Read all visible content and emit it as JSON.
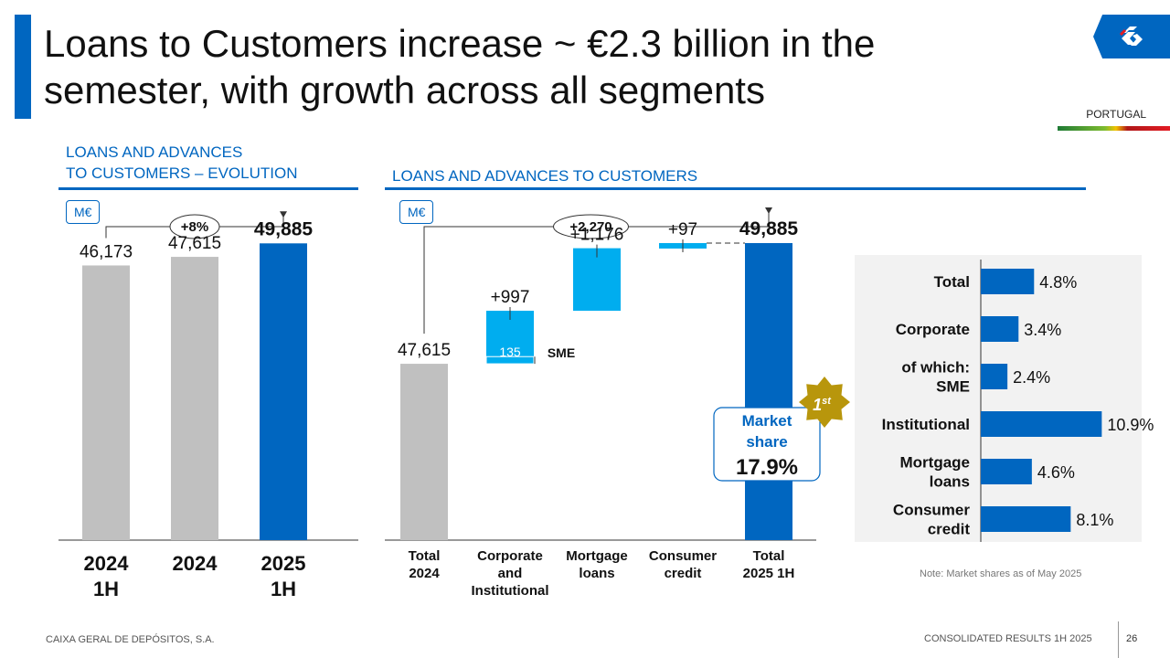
{
  "page": {
    "title": "Loans to Customers increase ~ €2.3 billion in the semester, with growth across all segments",
    "country": "PORTUGAL",
    "footer_left": "CAIXA GERAL DE DEPÓSITOS, S.A.",
    "footer_right": "CONSOLIDATED RESULTS 1H 2025",
    "page_number": "26",
    "note": "Note: Market shares as of May 2025"
  },
  "colors": {
    "brand_blue": "#0066c0",
    "light_blue": "#00adef",
    "grey_bar": "#c0c0c0",
    "gold": "#b8960c",
    "panel_bg": "#f2f2f2"
  },
  "chart_data": [
    {
      "type": "bar",
      "title": "LOANS AND ADVANCES\nTO CUSTOMERS – EVOLUTION",
      "title_lines": [
        "LOANS AND ADVANCES",
        "TO CUSTOMERS – EVOLUTION"
      ],
      "unit": "M€",
      "categories": [
        [
          "2024",
          "1H"
        ],
        [
          "2024"
        ],
        [
          "2025",
          "1H"
        ]
      ],
      "values": [
        46173,
        47615,
        49885
      ],
      "value_labels": [
        "46,173",
        "47,615",
        "49,885"
      ],
      "highlight_index": 2,
      "growth_label": "+8%",
      "ylim": [
        0,
        55000
      ]
    },
    {
      "type": "waterfall",
      "title": "LOANS AND ADVANCES TO CUSTOMERS",
      "unit": "M€",
      "categories": [
        [
          "Total",
          "2024"
        ],
        [
          "Corporate",
          "and",
          "Institutional"
        ],
        [
          "Mortgage",
          "loans"
        ],
        [
          "Consumer",
          "credit"
        ],
        [
          "Total",
          "2025 1H"
        ]
      ],
      "start": 47615,
      "deltas": [
        997,
        1176,
        97
      ],
      "end": 49885,
      "value_labels": [
        "47,615",
        "+997",
        "+1,176",
        "+97",
        "49,885"
      ],
      "sme_value": 135,
      "sme_value_label": "135",
      "sme_label": "SME",
      "growth_label": "+2,270",
      "market_share": {
        "label_lines": [
          "Market",
          "share"
        ],
        "value": "17.9%",
        "rank": "1",
        "rank_suffix": "st"
      },
      "ylim": [
        44300,
        50400
      ]
    },
    {
      "type": "bar",
      "orientation": "horizontal",
      "categories": [
        [
          "Total"
        ],
        [
          "Corporate"
        ],
        [
          "of which:",
          "SME"
        ],
        [
          "Institutional"
        ],
        [
          "Mortgage",
          "loans"
        ],
        [
          "Consumer",
          "credit"
        ]
      ],
      "values": [
        4.8,
        3.4,
        2.4,
        10.9,
        4.6,
        8.1
      ],
      "value_labels": [
        "4.8%",
        "3.4%",
        "2.4%",
        "10.9%",
        "4.6%",
        "8.1%"
      ],
      "xlim": [
        0,
        14
      ]
    }
  ]
}
